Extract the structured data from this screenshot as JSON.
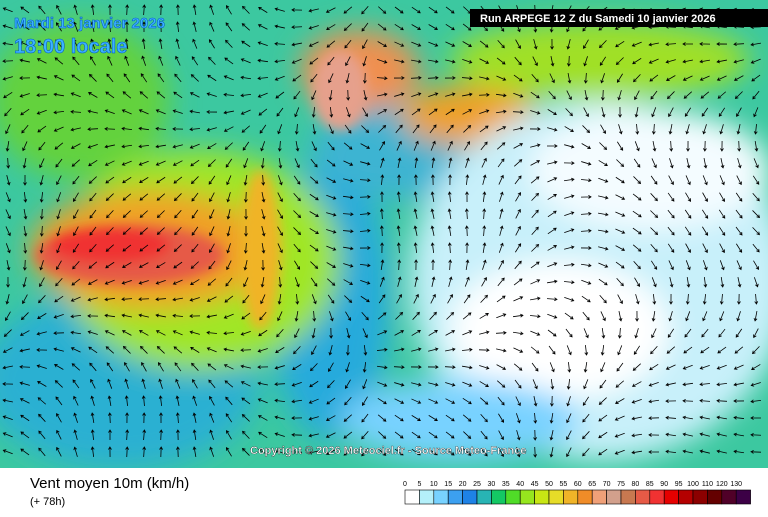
{
  "header": {
    "date": "Mardi 13 janvier 2026",
    "time": "18:00 locale",
    "run": "Run ARPEGE 12 Z du Samedi 10 janvier 2026"
  },
  "copyright": "Copyright © 2026 Meteociel.fr - Source Meteo-France",
  "footer": {
    "title": "Vent moyen 10m (km/h)",
    "lead": "(+ 78h)"
  },
  "legend": {
    "ticks": [
      0,
      5,
      10,
      15,
      20,
      25,
      30,
      35,
      40,
      45,
      50,
      55,
      60,
      65,
      70,
      75,
      80,
      85,
      90,
      95,
      100,
      110,
      120,
      130
    ],
    "colors": [
      "#ffffff",
      "#b4f0fa",
      "#78d2ff",
      "#3ca0f0",
      "#1e82e6",
      "#28b4b4",
      "#14c864",
      "#50dc28",
      "#96e61e",
      "#c8e614",
      "#e6dc28",
      "#f0b428",
      "#f08c28",
      "#f0a078",
      "#d2a08c",
      "#c87850",
      "#e65a46",
      "#f03232",
      "#e60000",
      "#b40000",
      "#8c0000",
      "#640000",
      "#500028",
      "#3c0046"
    ]
  }
}
